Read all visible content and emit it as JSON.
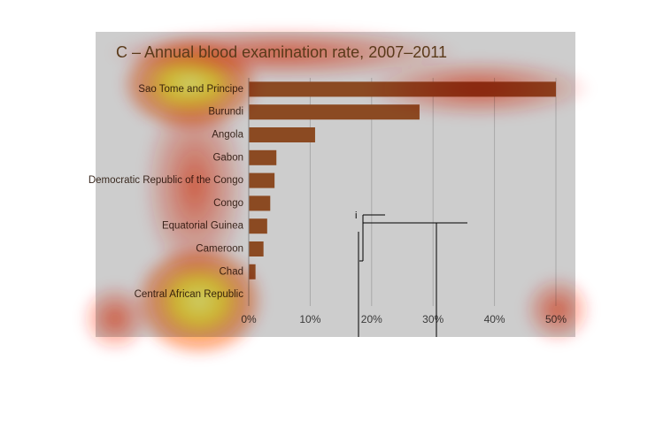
{
  "chart_data": {
    "type": "bar",
    "orientation": "horizontal",
    "title": "C – Annual blood examination rate, 2007–2011",
    "categories": [
      "Sao Tome and Principe",
      "Burundi",
      "Angola",
      "Gabon",
      "Democratic Republic of the Congo",
      "Congo",
      "Equatorial Guinea",
      "Cameroon",
      "Chad",
      "Central African Republic"
    ],
    "values": [
      50,
      27.8,
      10.8,
      4.5,
      4.2,
      3.5,
      3,
      2.4,
      1.1,
      0
    ],
    "color": "#8b4a22",
    "xlim": [
      0,
      50
    ],
    "xticks": [
      {
        "value": 0,
        "label": "0%"
      },
      {
        "value": 10,
        "label": "10%"
      },
      {
        "value": 20,
        "label": "20%"
      },
      {
        "value": 30,
        "label": "30%"
      },
      {
        "value": 40,
        "label": "40%"
      },
      {
        "value": 50,
        "label": "50%"
      }
    ],
    "grid": true,
    "annotations": [
      "i"
    ]
  }
}
